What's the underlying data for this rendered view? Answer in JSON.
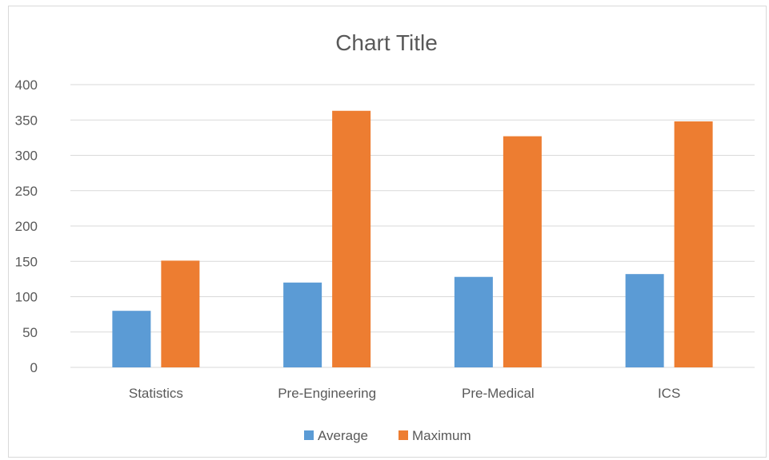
{
  "chart_data": {
    "type": "bar",
    "title": "Chart Title",
    "categories": [
      "Statistics",
      "Pre-Engineering",
      "Pre-Medical",
      "ICS"
    ],
    "series": [
      {
        "name": "Average",
        "values": [
          80,
          120,
          128,
          132
        ],
        "color": "#5b9bd5"
      },
      {
        "name": "Maximum",
        "values": [
          151,
          363,
          327,
          348
        ],
        "color": "#ed7d31"
      }
    ],
    "ylim": [
      0,
      400
    ],
    "yticks": [
      0,
      50,
      100,
      150,
      200,
      250,
      300,
      350,
      400
    ],
    "grid": true,
    "legend_position": "bottom"
  }
}
